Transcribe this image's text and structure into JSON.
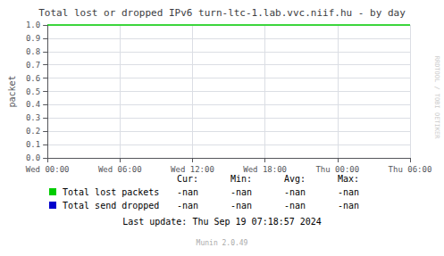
{
  "chart_data": {
    "type": "line",
    "title": "Total lost or dropped IPv6 turn-ltc-1.lab.vvc.niif.hu - by day",
    "ylabel": "packet",
    "xlim": [
      0,
      30
    ],
    "xticks": [
      {
        "value": 0,
        "label": "Wed 00:00"
      },
      {
        "value": 6,
        "label": "Wed 06:00"
      },
      {
        "value": 12,
        "label": "Wed 12:00"
      },
      {
        "value": 18,
        "label": "Wed 18:00"
      },
      {
        "value": 24,
        "label": "Thu 00:00"
      },
      {
        "value": 30,
        "label": "Thu 06:00"
      }
    ],
    "ylim": [
      0.0,
      1.0
    ],
    "yticks": [
      {
        "value": 0.0,
        "label": "0.0"
      },
      0.1,
      0.2,
      0.3,
      0.4,
      0.5,
      0.6,
      0.7,
      0.8,
      0.9,
      {
        "value": 1.0,
        "label": "1.0"
      }
    ],
    "grid": true,
    "reference_lines": [
      {
        "value": 1.0,
        "color": "#00cc00"
      }
    ],
    "x": [],
    "series": [
      {
        "name": "Total lost packets",
        "color": "#00cc00",
        "values": [],
        "stats": [
          "-nan",
          "-nan",
          "-nan",
          "-nan"
        ]
      },
      {
        "name": "Total send dropped",
        "color": "#0000cc",
        "values": [],
        "stats": [
          "-nan",
          "-nan",
          "-nan",
          "-nan"
        ]
      }
    ],
    "stats_header": [
      "Cur:",
      "Min:",
      "Avg:",
      "Max:"
    ],
    "annotations": [
      {
        "text": "RRDTOOL / TOBI OETIKER",
        "color": "#cccccc"
      },
      {
        "text": "Last update: Thu Sep 19 07:18:57 2024"
      },
      {
        "text": "Munin 2.0.49",
        "color": "#aaaaaa"
      }
    ]
  }
}
